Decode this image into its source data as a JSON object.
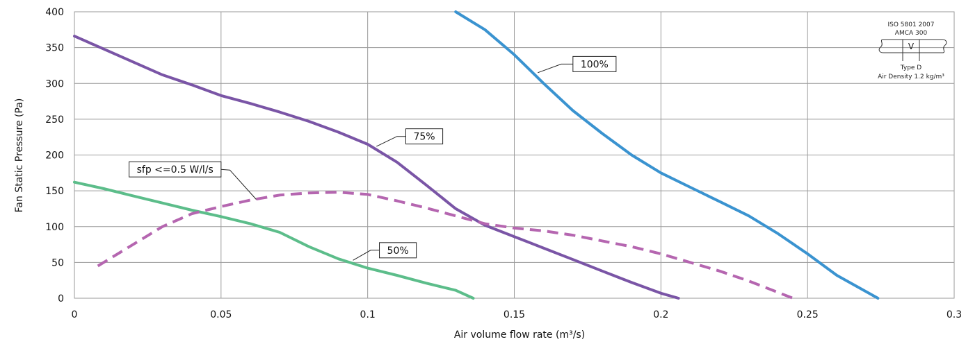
{
  "chart_data": {
    "type": "line",
    "xlabel": "Air volume flow rate (m³/s)",
    "ylabel": "Fan Static Pressure (Pa)",
    "xlim": [
      0,
      0.3
    ],
    "ylim": [
      0,
      400
    ],
    "x_ticks": [
      "0",
      "0.05",
      "0.1",
      "0.15",
      "0.2",
      "0.25",
      "0.3"
    ],
    "y_ticks": [
      "0",
      "50",
      "100",
      "150",
      "200",
      "250",
      "300",
      "350",
      "400"
    ],
    "grid": true,
    "series": [
      {
        "name": "100%",
        "color": "#3a93d0",
        "dash": false,
        "points": [
          [
            0.13,
            400
          ],
          [
            0.14,
            375
          ],
          [
            0.15,
            340
          ],
          [
            0.16,
            300
          ],
          [
            0.17,
            262
          ],
          [
            0.18,
            230
          ],
          [
            0.19,
            200
          ],
          [
            0.2,
            175
          ],
          [
            0.21,
            155
          ],
          [
            0.22,
            135
          ],
          [
            0.23,
            115
          ],
          [
            0.24,
            90
          ],
          [
            0.25,
            62
          ],
          [
            0.26,
            32
          ],
          [
            0.274,
            0
          ]
        ]
      },
      {
        "name": "75%",
        "color": "#7a55a6",
        "dash": false,
        "points": [
          [
            0,
            366
          ],
          [
            0.01,
            348
          ],
          [
            0.02,
            330
          ],
          [
            0.03,
            312
          ],
          [
            0.04,
            298
          ],
          [
            0.05,
            283
          ],
          [
            0.06,
            272
          ],
          [
            0.07,
            260
          ],
          [
            0.08,
            247
          ],
          [
            0.09,
            232
          ],
          [
            0.1,
            215
          ],
          [
            0.11,
            190
          ],
          [
            0.12,
            158
          ],
          [
            0.13,
            125
          ],
          [
            0.14,
            102
          ],
          [
            0.15,
            86
          ],
          [
            0.16,
            70
          ],
          [
            0.17,
            54
          ],
          [
            0.18,
            38
          ],
          [
            0.19,
            22
          ],
          [
            0.2,
            7
          ],
          [
            0.206,
            0
          ]
        ]
      },
      {
        "name": "50%",
        "color": "#5cbd8a",
        "dash": false,
        "points": [
          [
            0,
            162
          ],
          [
            0.01,
            153
          ],
          [
            0.02,
            143
          ],
          [
            0.03,
            133
          ],
          [
            0.04,
            123
          ],
          [
            0.05,
            114
          ],
          [
            0.06,
            104
          ],
          [
            0.07,
            92
          ],
          [
            0.08,
            72
          ],
          [
            0.09,
            55
          ],
          [
            0.1,
            42
          ],
          [
            0.11,
            32
          ],
          [
            0.12,
            21
          ],
          [
            0.13,
            11
          ],
          [
            0.136,
            0
          ]
        ]
      },
      {
        "name": "sfp <=0.5 W/l/s",
        "color": "#b566b0",
        "dash": true,
        "points": [
          [
            0.008,
            45
          ],
          [
            0.02,
            75
          ],
          [
            0.03,
            100
          ],
          [
            0.04,
            118
          ],
          [
            0.05,
            128
          ],
          [
            0.06,
            137
          ],
          [
            0.07,
            144
          ],
          [
            0.08,
            147
          ],
          [
            0.09,
            148
          ],
          [
            0.1,
            145
          ],
          [
            0.11,
            136
          ],
          [
            0.12,
            126
          ],
          [
            0.13,
            115
          ],
          [
            0.14,
            104
          ],
          [
            0.15,
            98
          ],
          [
            0.16,
            94
          ],
          [
            0.17,
            88
          ],
          [
            0.18,
            80
          ],
          [
            0.19,
            72
          ],
          [
            0.2,
            62
          ],
          [
            0.21,
            50
          ],
          [
            0.22,
            38
          ],
          [
            0.23,
            24
          ],
          [
            0.24,
            8
          ],
          [
            0.245,
            0
          ]
        ]
      }
    ],
    "callouts": [
      {
        "text": "100%",
        "leader": [
          [
            0.158,
            315
          ],
          [
            0.166,
            327
          ],
          [
            0.17,
            327
          ]
        ]
      },
      {
        "text": "75%",
        "leader": [
          [
            0.103,
            212
          ],
          [
            0.11,
            226
          ],
          [
            0.113,
            226
          ]
        ]
      },
      {
        "text": "50%",
        "leader": [
          [
            0.095,
            53
          ],
          [
            0.101,
            67
          ],
          [
            0.104,
            67
          ]
        ]
      },
      {
        "text": "sfp <=0.5 W/l/s",
        "leader": [
          [
            0.062,
            138
          ],
          [
            0.053,
            179
          ],
          [
            0.05,
            180
          ]
        ]
      }
    ],
    "badge": {
      "line1": "ISO 5801 2007",
      "line2": "AMCA 300",
      "symbol": "V",
      "line3": "Type D",
      "line4": "Air Density 1.2 kg/m³"
    }
  }
}
